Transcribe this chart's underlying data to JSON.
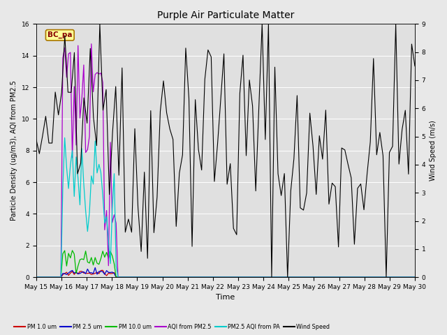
{
  "title": "Purple Air Particulate Matter",
  "xlabel": "Time",
  "ylabel_left": "Particle Density (ug/m3), AQI from PM2.5",
  "ylabel_right": "Wind Speed (m/s)",
  "ylim_left": [
    0,
    16
  ],
  "ylim_right": [
    0,
    9.0
  ],
  "yticks_left": [
    0,
    2,
    4,
    6,
    8,
    10,
    12,
    14,
    16
  ],
  "yticks_right": [
    0.0,
    1.0,
    2.0,
    3.0,
    4.0,
    5.0,
    6.0,
    7.0,
    8.0,
    9.0
  ],
  "fig_bg_color": "#e8e8e8",
  "plot_bg_color": "#e0e0e0",
  "label_bc_pa": "BC_pa",
  "legend_entries": [
    "PM 1.0 um",
    "PM 2.5 um",
    "PM 10.0 um",
    "AQI from PM2.5",
    "PM2.5 AQI from PA",
    "Wind Speed"
  ],
  "legend_colors": [
    "#cc0000",
    "#0000cc",
    "#00bb00",
    "#aa00cc",
    "#00cccc",
    "#000000"
  ],
  "xtick_labels": [
    "May 15",
    "May 16",
    "May 17",
    "May 18",
    "May 19",
    "May 20",
    "May 21",
    "May 22",
    "May 23",
    "May 24",
    "May 25",
    "May 26",
    "May 27",
    "May 28",
    "May 29",
    "May 30"
  ],
  "wind_num_points": 120,
  "pm_num_points": 200
}
